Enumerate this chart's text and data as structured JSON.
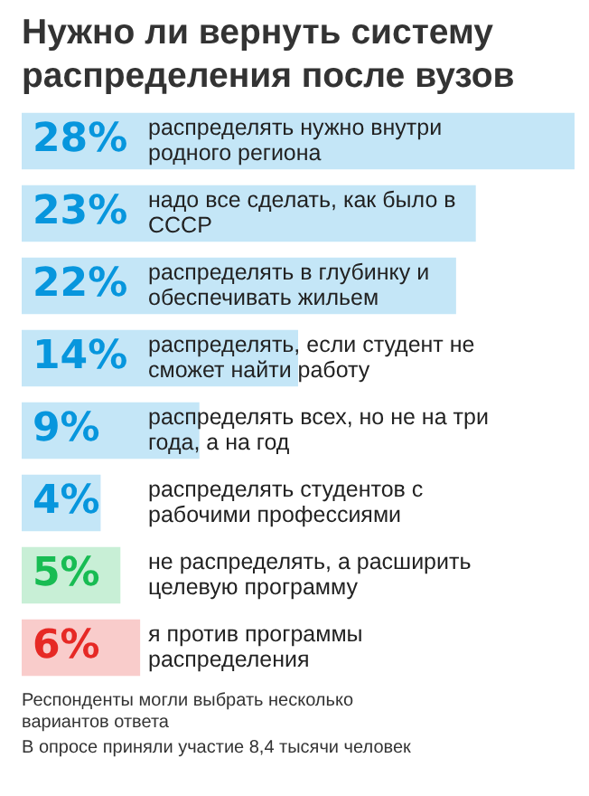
{
  "chart_data": {
    "type": "bar",
    "orientation": "horizontal",
    "title": "Нужно ли вернуть систему распределения после вузов",
    "categories": [
      "распределять нужно внутри родного региона",
      "надо все сделать, как было в СССР",
      "распределять в глубинку и обеспечивать жильем",
      "распределять, если студент не сможет найти работу",
      "распределять всех, но не на три года, а на год",
      "распределять студентов с рабочими профессиями",
      "не распределять, а расширить целевую программу",
      "я против программы распределения"
    ],
    "values": [
      28,
      23,
      22,
      14,
      9,
      4,
      5,
      6
    ],
    "value_labels": [
      "28%",
      "23%",
      "22%",
      "14%",
      "9%",
      "4%",
      "5%",
      "6%"
    ],
    "colors": [
      "#c4e6f7",
      "#c4e6f7",
      "#c4e6f7",
      "#c4e6f7",
      "#c4e6f7",
      "#c4e6f7",
      "#c8efd6",
      "#f9cccb"
    ],
    "legend": false,
    "annotations": [
      "Респонденты могли выбрать несколько вариантов ответа",
      "В опросе приняли участие 8,4 тысячи человек"
    ]
  }
}
